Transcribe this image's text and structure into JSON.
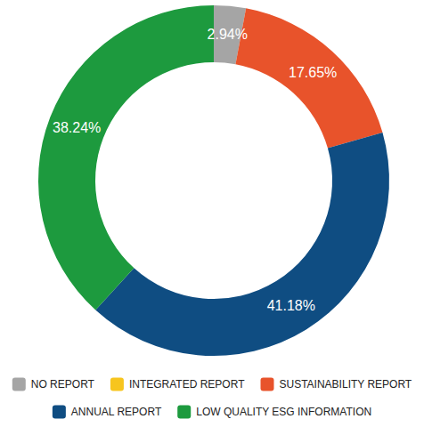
{
  "chart_data": {
    "type": "donut",
    "categories": [
      "NO REPORT",
      "INTEGRATED REPORT",
      "SUSTAINABILITY REPORT",
      "ANNUAL REPORT",
      "LOW QUALITY ESG INFORMATION"
    ],
    "values": [
      2.94,
      0,
      17.65,
      41.18,
      38.24
    ],
    "value_labels": [
      "2.94%",
      null,
      "17.65%",
      "41.18%",
      "38.24%"
    ],
    "colors": [
      "#a5a5a5",
      "#f7c51e",
      "#e8532b",
      "#0f4d82",
      "#1d9a3e"
    ],
    "data_labels": true,
    "legend": "bottom"
  }
}
